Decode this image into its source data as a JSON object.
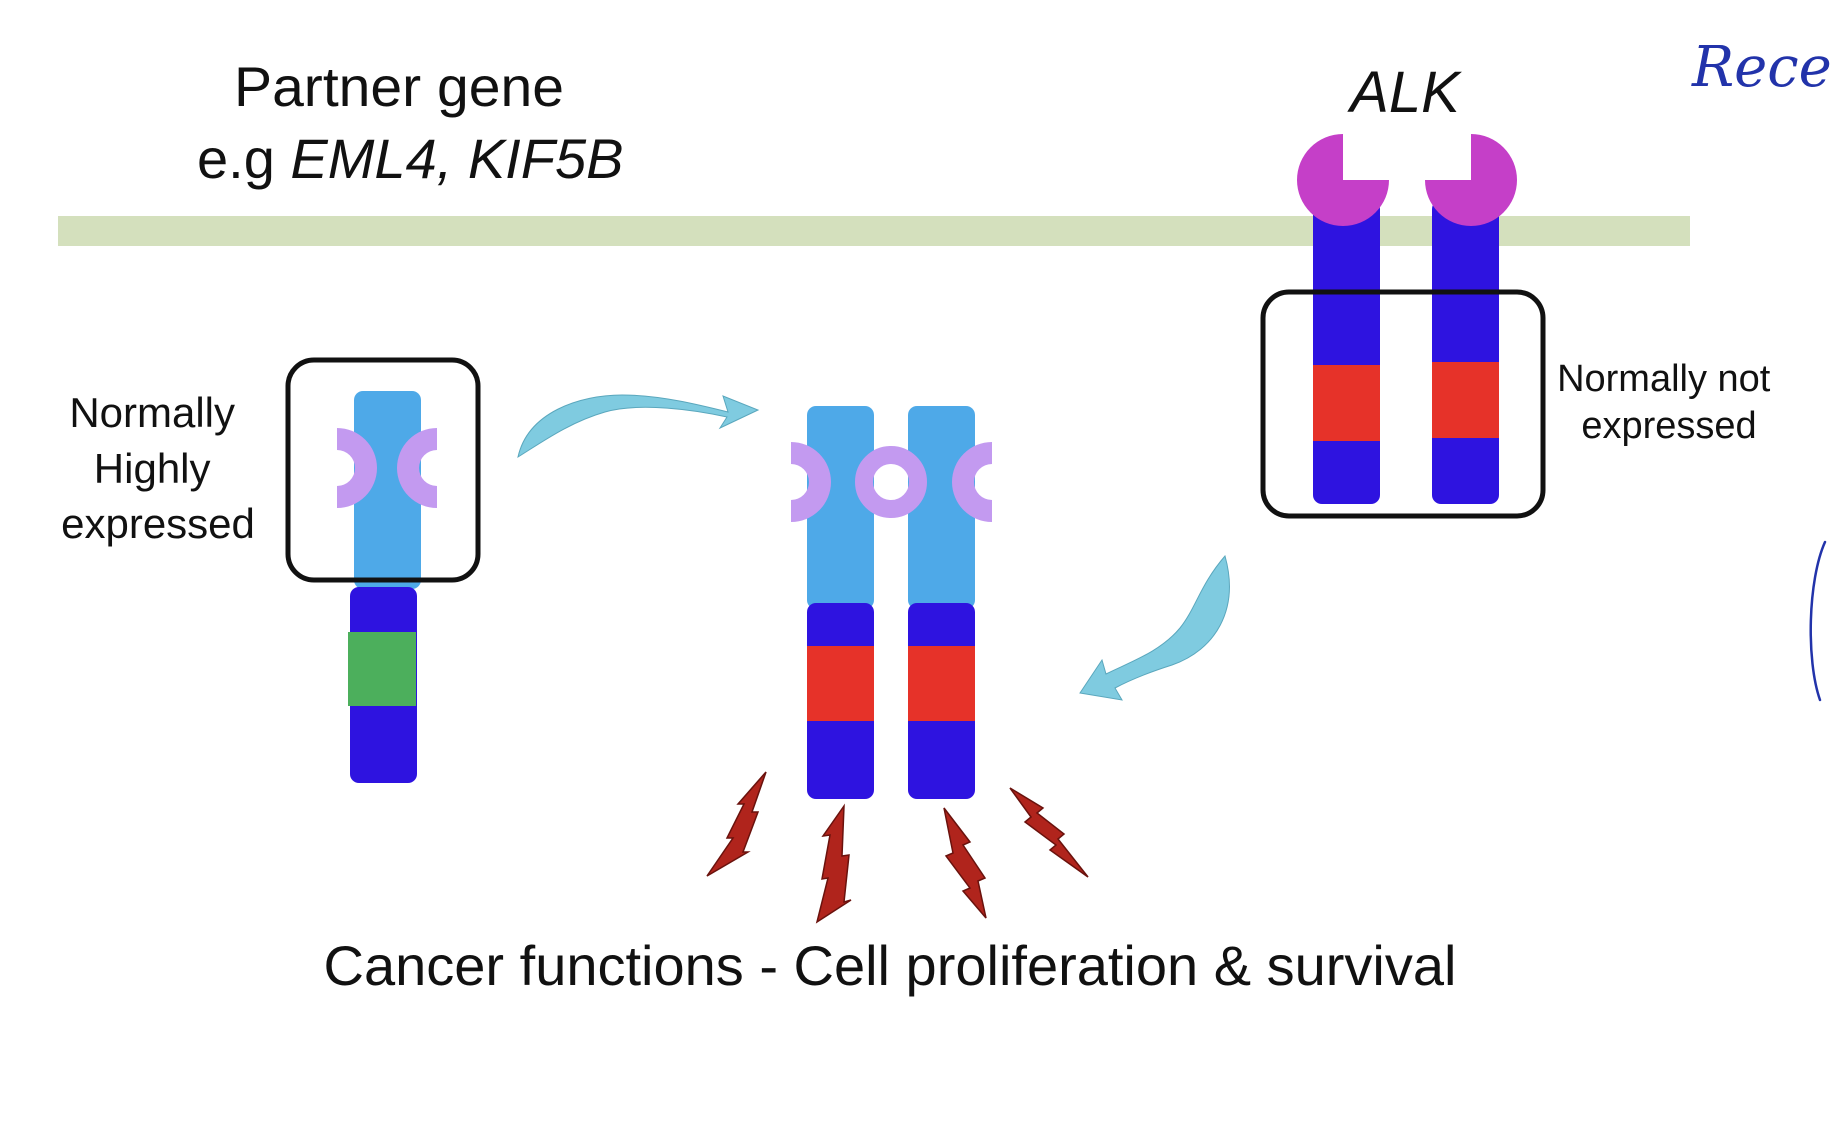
{
  "partner_title": "Partner gene",
  "partner_prefix": "e.g",
  "partner_examples": "EML4, KIF5B",
  "alk_title": "ALK",
  "partner_expr_lines": [
    "Normally",
    "Highly",
    "expressed"
  ],
  "alk_expr_lines": [
    "Normally not",
    "expressed"
  ],
  "bottom_caption": "Cancer functions - Cell proliferation & survival",
  "handwritten_note": "Rece",
  "colors": {
    "membrane": "#d4e0bd",
    "light_blue": "#4ea9e8",
    "dark_blue": "#2e13e0",
    "red_kinase": "#e63229",
    "green_domain": "#4caf5c",
    "lavender": "#c39af0",
    "magenta": "#c53fc8",
    "arrow": "#7fcbe0",
    "lightning": "#b0241c",
    "ink": "#2233aa"
  }
}
